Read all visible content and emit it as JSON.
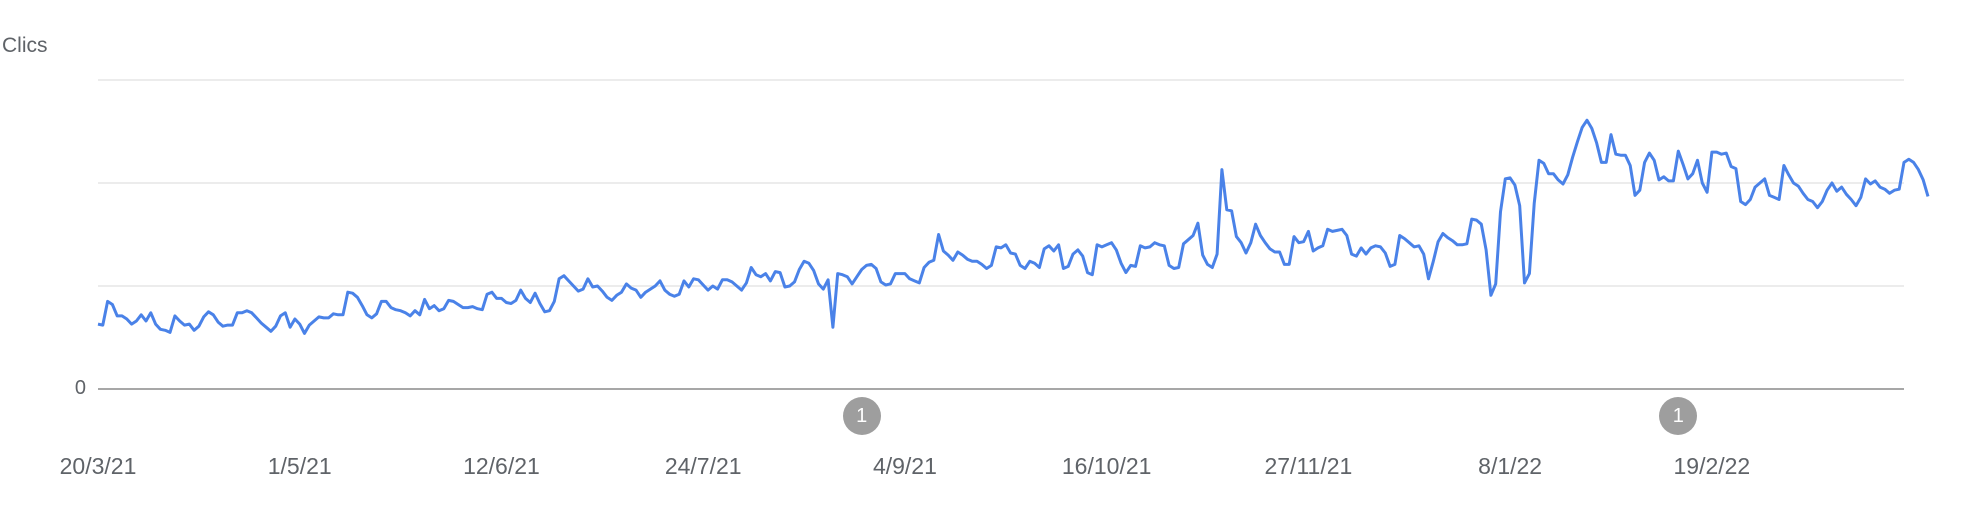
{
  "chart_data": {
    "type": "line",
    "ylabel": "Clics",
    "y_tick_labels": [
      "",
      "",
      "",
      "0"
    ],
    "ylim": [
      0,
      3
    ],
    "x_tick_labels": [
      "20/3/21",
      "1/5/21",
      "12/6/21",
      "24/7/21",
      "4/9/21",
      "16/10/21",
      "27/11/21",
      "8/1/22",
      "19/2/22"
    ],
    "x_start": "2021-03-20",
    "x_end": "2022-03-31",
    "grid": true,
    "legend": "none",
    "series": [
      {
        "color": "#4a82e8",
        "values": [
          0.63,
          0.62,
          0.85,
          0.82,
          0.71,
          0.71,
          0.68,
          0.63,
          0.66,
          0.72,
          0.66,
          0.74,
          0.63,
          0.58,
          0.57,
          0.55,
          0.71,
          0.66,
          0.62,
          0.63,
          0.57,
          0.61,
          0.7,
          0.75,
          0.72,
          0.65,
          0.61,
          0.62,
          0.62,
          0.74,
          0.74,
          0.76,
          0.74,
          0.69,
          0.64,
          0.6,
          0.56,
          0.61,
          0.71,
          0.74,
          0.6,
          0.68,
          0.63,
          0.54,
          0.62,
          0.66,
          0.7,
          0.69,
          0.69,
          0.73,
          0.72,
          0.72,
          0.94,
          0.93,
          0.89,
          0.81,
          0.72,
          0.69,
          0.73,
          0.85,
          0.85,
          0.79,
          0.77,
          0.76,
          0.74,
          0.71,
          0.76,
          0.72,
          0.87,
          0.78,
          0.81,
          0.76,
          0.78,
          0.86,
          0.85,
          0.82,
          0.79,
          0.79,
          0.8,
          0.78,
          0.77,
          0.92,
          0.94,
          0.88,
          0.88,
          0.84,
          0.83,
          0.86,
          0.96,
          0.88,
          0.84,
          0.93,
          0.83,
          0.75,
          0.76,
          0.85,
          1.07,
          1.1,
          1.05,
          1.0,
          0.95,
          0.97,
          1.07,
          0.99,
          1.0,
          0.95,
          0.89,
          0.86,
          0.91,
          0.94,
          1.02,
          0.98,
          0.96,
          0.89,
          0.94,
          0.97,
          1.0,
          1.05,
          0.96,
          0.92,
          0.9,
          0.92,
          1.05,
          0.99,
          1.07,
          1.06,
          1.01,
          0.96,
          1.0,
          0.97,
          1.06,
          1.06,
          1.04,
          1.0,
          0.96,
          1.03,
          1.18,
          1.11,
          1.09,
          1.12,
          1.05,
          1.14,
          1.13,
          0.99,
          1.0,
          1.04,
          1.16,
          1.24,
          1.22,
          1.15,
          1.02,
          0.97,
          1.06,
          0.6,
          1.12,
          1.11,
          1.09,
          1.02,
          1.09,
          1.16,
          1.2,
          1.21,
          1.17,
          1.04,
          1.01,
          1.02,
          1.12,
          1.12,
          1.12,
          1.07,
          1.05,
          1.03,
          1.18,
          1.23,
          1.25,
          1.5,
          1.34,
          1.3,
          1.25,
          1.33,
          1.3,
          1.26,
          1.24,
          1.24,
          1.21,
          1.17,
          1.2,
          1.38,
          1.37,
          1.4,
          1.32,
          1.31,
          1.2,
          1.17,
          1.24,
          1.22,
          1.18,
          1.36,
          1.39,
          1.34,
          1.4,
          1.17,
          1.19,
          1.31,
          1.35,
          1.29,
          1.13,
          1.11,
          1.4,
          1.38,
          1.4,
          1.42,
          1.35,
          1.22,
          1.13,
          1.2,
          1.19,
          1.39,
          1.37,
          1.38,
          1.42,
          1.4,
          1.39,
          1.2,
          1.17,
          1.18,
          1.41,
          1.45,
          1.49,
          1.61,
          1.3,
          1.21,
          1.18,
          1.31,
          2.13,
          1.74,
          1.73,
          1.48,
          1.42,
          1.32,
          1.42,
          1.6,
          1.49,
          1.42,
          1.36,
          1.33,
          1.33,
          1.21,
          1.21,
          1.48,
          1.42,
          1.43,
          1.53,
          1.34,
          1.37,
          1.39,
          1.55,
          1.53,
          1.54,
          1.55,
          1.49,
          1.31,
          1.29,
          1.37,
          1.31,
          1.37,
          1.39,
          1.38,
          1.32,
          1.19,
          1.21,
          1.49,
          1.46,
          1.42,
          1.38,
          1.39,
          1.31,
          1.07,
          1.24,
          1.43,
          1.51,
          1.47,
          1.44,
          1.4,
          1.4,
          1.41,
          1.65,
          1.64,
          1.6,
          1.35,
          0.91,
          1.02,
          1.72,
          2.04,
          2.05,
          1.98,
          1.78,
          1.03,
          1.12,
          1.8,
          2.22,
          2.19,
          2.09,
          2.09,
          2.03,
          1.99,
          2.08,
          2.25,
          2.4,
          2.54,
          2.61,
          2.53,
          2.39,
          2.2,
          2.2,
          2.47,
          2.28,
          2.27,
          2.27,
          2.17,
          1.88,
          1.93,
          2.2,
          2.29,
          2.22,
          2.03,
          2.06,
          2.02,
          2.02,
          2.31,
          2.18,
          2.04,
          2.09,
          2.22,
          2.0,
          1.91,
          2.3,
          2.3,
          2.28,
          2.29,
          2.16,
          2.14,
          1.82,
          1.79,
          1.84,
          1.96,
          2.0,
          2.04,
          1.88,
          1.86,
          1.84,
          2.17,
          2.08,
          2.0,
          1.97,
          1.9,
          1.84,
          1.82,
          1.76,
          1.82,
          1.93,
          2.0,
          1.92,
          1.96,
          1.89,
          1.84,
          1.78,
          1.86,
          2.04,
          1.99,
          2.02,
          1.96,
          1.94,
          1.9,
          1.93,
          1.94,
          2.2,
          2.23,
          2.2,
          2.13,
          2.03,
          1.87
        ]
      }
    ],
    "annotations": [
      {
        "label": "1",
        "date": "2021-08-26"
      },
      {
        "label": "1",
        "date": "2022-02-12"
      }
    ]
  }
}
